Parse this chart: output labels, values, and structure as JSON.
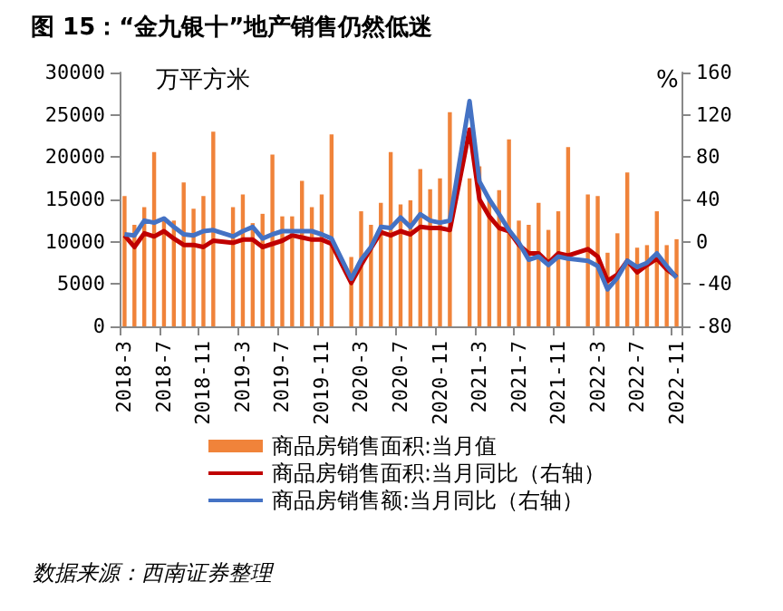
{
  "chart_data": {
    "type": "bar",
    "title": "图 15：“金九银十”地产销售仍然低迷",
    "ylabel": "万平方米",
    "y2label": "%",
    "categories": [
      "2018-3",
      null,
      null,
      null,
      "2018-7",
      null,
      null,
      null,
      "2018-11",
      null,
      null,
      null,
      "2019-3",
      null,
      null,
      null,
      "2019-7",
      null,
      null,
      null,
      "2019-11",
      null,
      null,
      null,
      "2020-3",
      null,
      null,
      null,
      "2020-7",
      null,
      null,
      null,
      "2020-11",
      null,
      null,
      null,
      "2021-3",
      null,
      null,
      null,
      "2021-7",
      null,
      null,
      null,
      "2021-11",
      null,
      null,
      null,
      "2022-3",
      null,
      null,
      null,
      "2022-7",
      null,
      null,
      null,
      "2022-11"
    ],
    "series": [
      {
        "name": "商品房销售面积:当月值",
        "color": "#f0833a",
        "values": [
          15400,
          12000,
          14100,
          20600,
          12600,
          12500,
          17000,
          13900,
          15400,
          23000,
          null,
          14100,
          15600,
          12200,
          13300,
          20300,
          13000,
          13000,
          17200,
          14100,
          15600,
          22700,
          null,
          8200,
          13600,
          12000,
          14600,
          20600,
          14400,
          14900,
          18600,
          16200,
          17500,
          25300,
          null,
          17500,
          18900,
          15000,
          16100,
          22100,
          12500,
          12000,
          14600,
          11400,
          13600,
          21200,
          null,
          15600,
          15400,
          8700,
          11000,
          18200,
          9300,
          9600,
          13600,
          9600,
          10300
        ]
      },
      {
        "name": "商品房销售面积:当月同比（右轴）",
        "type": "line",
        "axis": "y2",
        "color": "#c00000",
        "values": [
          6,
          -5,
          8,
          5,
          10,
          3,
          -3,
          -3,
          -5,
          1,
          null,
          -1,
          2,
          2,
          -5,
          -2,
          1,
          6,
          4,
          2,
          2,
          -2,
          null,
          -39,
          -22,
          -6,
          9,
          6,
          10,
          7,
          14,
          13,
          13,
          11,
          null,
          106,
          40,
          24,
          13,
          10,
          -3,
          -11,
          -11,
          -20,
          -11,
          -13,
          null,
          -7,
          -14,
          -37,
          -31,
          -18,
          -29,
          -22,
          -16,
          -26,
          -33
        ]
      },
      {
        "name": "商品房销售额:当月同比（右轴）",
        "type": "line",
        "axis": "y2",
        "color": "#4472c4",
        "values": [
          7,
          6,
          20,
          18,
          22,
          14,
          7,
          6,
          10,
          11,
          null,
          5,
          10,
          14,
          3,
          7,
          10,
          10,
          10,
          10,
          7,
          3,
          null,
          -35,
          -17,
          -5,
          14,
          13,
          23,
          14,
          26,
          20,
          18,
          20,
          null,
          133,
          57,
          40,
          26,
          11,
          -1,
          -17,
          -14,
          -22,
          -14,
          -16,
          null,
          -18,
          -23,
          -45,
          -34,
          -18,
          -24,
          -20,
          -11,
          -23,
          -34
        ]
      }
    ],
    "ylim": [
      0,
      30000
    ],
    "yticks": [
      0,
      5000,
      10000,
      15000,
      20000,
      25000,
      30000
    ],
    "y2lim": [
      -80,
      160
    ],
    "y2ticks": [
      -80,
      -40,
      0,
      40,
      80,
      120,
      160
    ],
    "legend": "bottom",
    "grid": false,
    "annotations": [
      "数据来源：西南证券整理"
    ]
  }
}
